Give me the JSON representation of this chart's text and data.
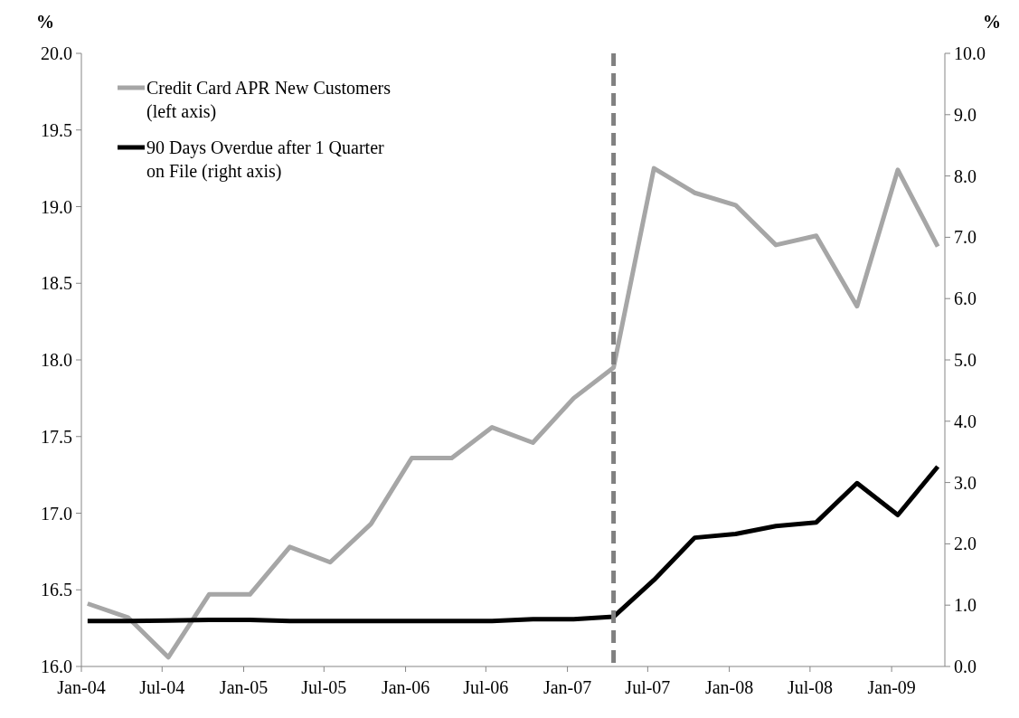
{
  "chart_data": {
    "type": "line",
    "ylabel": "%",
    "y2label": "%",
    "x": [
      "2004-01-15",
      "2004-04-15",
      "2004-07-15",
      "2004-10-15",
      "2005-01-15",
      "2005-04-15",
      "2005-07-15",
      "2005-10-15",
      "2006-01-15",
      "2006-04-15",
      "2006-07-15",
      "2006-10-15",
      "2007-01-15",
      "2007-04-15",
      "2007-07-15",
      "2007-10-15",
      "2008-01-15",
      "2008-04-15",
      "2008-07-15",
      "2008-10-15",
      "2009-01-15",
      "2009-04-15"
    ],
    "series": [
      {
        "name": "Credit Card APR New Customers (left axis)",
        "color": "#a6a6a6",
        "values": [
          16.41,
          16.32,
          16.06,
          16.47,
          16.47,
          16.78,
          16.68,
          16.93,
          17.36,
          17.36,
          17.56,
          17.46,
          17.75,
          17.95,
          19.25,
          19.09,
          19.01,
          18.75,
          18.81,
          18.35,
          19.24,
          18.74
        ]
      },
      {
        "name": "90 Days Overdue after 1 Quarter on File (right axis)",
        "color": "#000000",
        "axis": "y2",
        "values": [
          0.74,
          0.74,
          0.75,
          0.76,
          0.76,
          0.74,
          0.74,
          0.74,
          0.74,
          0.74,
          0.74,
          0.77,
          0.77,
          0.81,
          1.41,
          2.1,
          2.16,
          2.29,
          2.35,
          2.99,
          2.47,
          3.26
        ]
      }
    ],
    "xlim": [
      "2004-01-01",
      "2009-05-01"
    ],
    "xticks": [
      {
        "value": "2004-01-01",
        "label": "Jan-04"
      },
      {
        "value": "2004-07-01",
        "label": "Jul-04"
      },
      {
        "value": "2005-01-01",
        "label": "Jan-05"
      },
      {
        "value": "2005-07-01",
        "label": "Jul-05"
      },
      {
        "value": "2006-01-01",
        "label": "Jan-06"
      },
      {
        "value": "2006-07-01",
        "label": "Jul-06"
      },
      {
        "value": "2007-01-01",
        "label": "Jan-07"
      },
      {
        "value": "2007-07-01",
        "label": "Jul-07"
      },
      {
        "value": "2008-01-01",
        "label": "Jan-08"
      },
      {
        "value": "2008-07-01",
        "label": "Jul-08"
      },
      {
        "value": "2009-01-01",
        "label": "Jan-09"
      }
    ],
    "ylim": [
      16.0,
      20.0
    ],
    "yticks": [
      {
        "value": 16,
        "label": "16.0"
      },
      {
        "value": 16.5,
        "label": "16.5"
      },
      {
        "value": 17,
        "label": "17.0"
      },
      {
        "value": 17.5,
        "label": "17.5"
      },
      {
        "value": 18,
        "label": "18.0"
      },
      {
        "value": 18.5,
        "label": "18.5"
      },
      {
        "value": 19,
        "label": "19.0"
      },
      {
        "value": 19.5,
        "label": "19.5"
      },
      {
        "value": 20,
        "label": "20.0"
      }
    ],
    "y2lim": [
      0.0,
      10.0
    ],
    "y2ticks": [
      {
        "value": 0,
        "label": "0.0"
      },
      {
        "value": 1,
        "label": "1.0"
      },
      {
        "value": 2,
        "label": "2.0"
      },
      {
        "value": 3,
        "label": "3.0"
      },
      {
        "value": 4,
        "label": "4.0"
      },
      {
        "value": 5,
        "label": "5.0"
      },
      {
        "value": 6,
        "label": "6.0"
      },
      {
        "value": 7,
        "label": "7.0"
      },
      {
        "value": 8,
        "label": "8.0"
      },
      {
        "value": 9,
        "label": "9.0"
      },
      {
        "value": 10,
        "label": "10.0"
      }
    ],
    "ref_lines": [
      {
        "axis": "x",
        "value": "2007-04-15",
        "color": "#808080",
        "line_style": "dashed"
      }
    ],
    "grid": false,
    "legend": "top left",
    "marker": "none",
    "line_style": "solid"
  }
}
